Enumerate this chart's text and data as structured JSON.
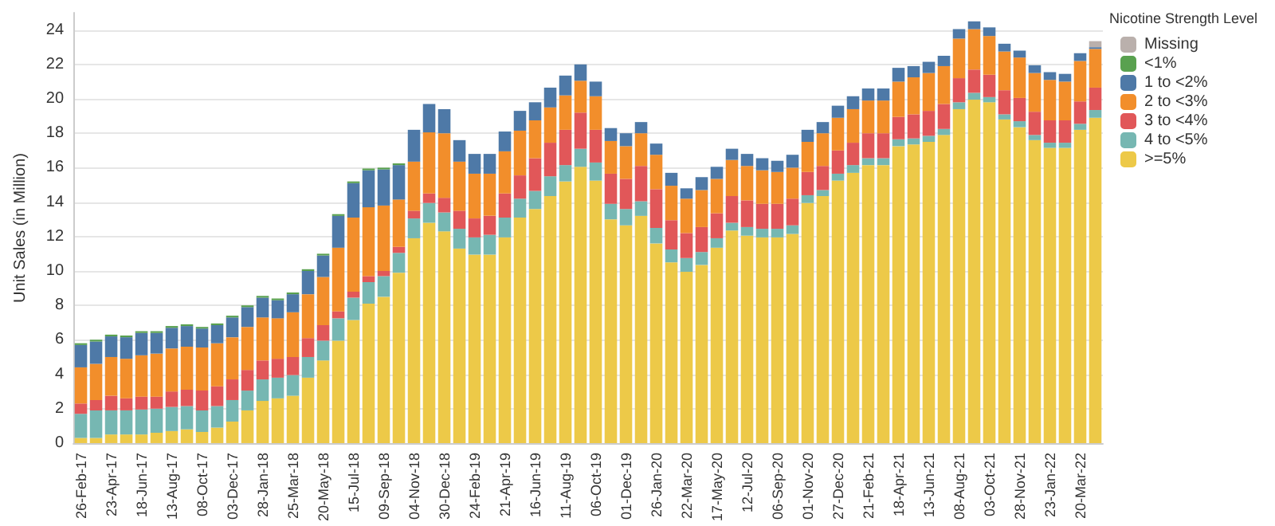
{
  "chart_data": {
    "type": "bar",
    "stacked": true,
    "ylabel": "Unit Sales (in Million)",
    "legend_title": "Nicotine Strength Level",
    "legend": "top right",
    "grid": "y",
    "categories": [
      "26-Feb-17",
      null,
      "23-Apr-17",
      null,
      "18-Jun-17",
      null,
      "13-Aug-17",
      null,
      "08-Oct-17",
      null,
      "03-Dec-17",
      null,
      "28-Jan-18",
      null,
      "25-Mar-18",
      null,
      "20-May-18",
      null,
      "15-Jul-18",
      null,
      "09-Sep-18",
      null,
      "04-Nov-18",
      null,
      "30-Dec-18",
      null,
      "24-Feb-19",
      null,
      "21-Apr-19",
      null,
      "16-Jun-19",
      null,
      "11-Aug-19",
      null,
      "06-Oct-19",
      null,
      "01-Dec-19",
      null,
      "26-Jan-20",
      null,
      "22-Mar-20",
      null,
      "17-May-20",
      null,
      "12-Jul-20",
      null,
      "06-Sep-20",
      null,
      "01-Nov-20",
      null,
      "27-Dec-20",
      null,
      "21-Feb-21",
      null,
      "18-Apr-21",
      null,
      "13-Jun-21",
      null,
      "08-Aug-21",
      null,
      "03-Oct-21",
      null,
      "28-Nov-21",
      null,
      "23-Jan-22",
      null,
      "20-Mar-22",
      null
    ],
    "ylim": [
      0,
      25
    ],
    "yticks": [
      0,
      2,
      4,
      6,
      8,
      10,
      12,
      14,
      16,
      18,
      20,
      22,
      24
    ],
    "series": [
      {
        "name": ">=5%",
        "color": "#edc948",
        "values": [
          0.3,
          0.3,
          0.5,
          0.5,
          0.5,
          0.6,
          0.7,
          0.8,
          0.65,
          0.9,
          1.25,
          1.9,
          2.45,
          2.6,
          2.75,
          3.8,
          4.8,
          5.95,
          7.15,
          8.1,
          8.5,
          9.9,
          11.9,
          12.8,
          12.3,
          11.3,
          10.95,
          10.95,
          11.95,
          13.1,
          13.6,
          14.35,
          15.2,
          16.05,
          15.25,
          13.0,
          12.65,
          13.2,
          11.6,
          10.5,
          9.95,
          10.35,
          11.35,
          12.35,
          12.05,
          11.95,
          11.95,
          12.15,
          13.95,
          14.35,
          15.25,
          15.7,
          16.15,
          16.15,
          17.25,
          17.35,
          17.5,
          17.9,
          19.4,
          19.95,
          19.8,
          18.8,
          18.35,
          17.6,
          17.15,
          17.15,
          18.2,
          18.9
        ]
      },
      {
        "name": "4 to <5%",
        "color": "#76b7b2",
        "values": [
          1.4,
          1.6,
          1.4,
          1.4,
          1.45,
          1.4,
          1.4,
          1.35,
          1.25,
          1.25,
          1.25,
          1.15,
          1.25,
          1.2,
          1.2,
          1.2,
          1.15,
          1.3,
          1.3,
          1.25,
          1.2,
          1.15,
          1.15,
          1.15,
          1.1,
          1.15,
          1.0,
          1.15,
          1.15,
          1.1,
          1.05,
          1.15,
          0.95,
          1.05,
          1.05,
          0.9,
          0.95,
          0.85,
          0.9,
          0.75,
          0.8,
          0.75,
          0.55,
          0.45,
          0.5,
          0.5,
          0.5,
          0.5,
          0.45,
          0.35,
          0.4,
          0.45,
          0.4,
          0.4,
          0.4,
          0.35,
          0.35,
          0.35,
          0.4,
          0.4,
          0.3,
          0.3,
          0.35,
          0.3,
          0.3,
          0.3,
          0.35,
          0.45
        ]
      },
      {
        "name": "3 to <4%",
        "color": "#e15759",
        "values": [
          0.6,
          0.6,
          0.85,
          0.7,
          0.75,
          0.7,
          0.9,
          0.95,
          1.15,
          1.15,
          1.2,
          1.2,
          1.1,
          1.1,
          1.05,
          1.1,
          0.9,
          0.4,
          0.35,
          0.35,
          0.3,
          0.35,
          0.45,
          0.55,
          0.85,
          1.05,
          1.1,
          1.1,
          1.4,
          1.35,
          1.9,
          1.95,
          2.05,
          2.1,
          1.9,
          1.75,
          1.75,
          2.05,
          2.25,
          1.7,
          1.45,
          1.45,
          1.45,
          1.55,
          1.55,
          1.45,
          1.45,
          1.55,
          1.35,
          1.4,
          1.35,
          1.3,
          1.45,
          1.45,
          1.3,
          1.4,
          1.45,
          1.45,
          1.4,
          1.35,
          1.3,
          1.4,
          1.35,
          1.35,
          1.3,
          1.3,
          1.3,
          1.3
        ]
      },
      {
        "name": "2 to <3%",
        "color": "#f28e2b",
        "values": [
          2.1,
          2.1,
          2.25,
          2.3,
          2.4,
          2.5,
          2.5,
          2.5,
          2.5,
          2.5,
          2.45,
          2.5,
          2.5,
          2.35,
          2.6,
          2.55,
          2.8,
          3.7,
          4.3,
          4.0,
          3.8,
          2.75,
          2.85,
          3.55,
          3.75,
          2.85,
          2.6,
          2.45,
          2.45,
          2.6,
          2.2,
          2.05,
          2.0,
          1.85,
          1.95,
          1.9,
          1.9,
          1.9,
          2.0,
          2.0,
          2.0,
          2.15,
          2.0,
          2.1,
          2.0,
          1.95,
          1.85,
          1.8,
          1.75,
          1.9,
          1.9,
          1.95,
          1.9,
          1.9,
          2.05,
          2.15,
          2.2,
          2.2,
          2.3,
          2.35,
          2.25,
          2.25,
          2.35,
          2.25,
          2.35,
          2.25,
          2.35,
          2.25
        ]
      },
      {
        "name": "1 to <2%",
        "color": "#4e79a7",
        "values": [
          1.3,
          1.3,
          1.2,
          1.25,
          1.3,
          1.2,
          1.2,
          1.2,
          1.1,
          1.05,
          1.15,
          1.15,
          1.15,
          1.05,
          1.05,
          1.35,
          1.25,
          1.85,
          2.0,
          2.15,
          2.1,
          2.0,
          1.85,
          1.65,
          1.4,
          1.25,
          1.15,
          1.15,
          1.15,
          1.15,
          1.05,
          1.15,
          1.15,
          0.95,
          0.85,
          0.75,
          0.75,
          0.65,
          0.65,
          0.75,
          0.6,
          0.75,
          0.7,
          0.65,
          0.7,
          0.7,
          0.65,
          0.75,
          0.7,
          0.65,
          0.7,
          0.75,
          0.7,
          0.7,
          0.8,
          0.65,
          0.65,
          0.6,
          0.55,
          0.45,
          0.5,
          0.45,
          0.4,
          0.45,
          0.45,
          0.45,
          0.45,
          0.1
        ]
      },
      {
        "name": "<1%",
        "color": "#59a14f",
        "values": [
          0.1,
          0.1,
          0.1,
          0.1,
          0.1,
          0.1,
          0.1,
          0.1,
          0.1,
          0.1,
          0.1,
          0.1,
          0.1,
          0.1,
          0.1,
          0.1,
          0.1,
          0.1,
          0.1,
          0.1,
          0.1,
          0.1,
          0,
          0,
          0,
          0,
          0,
          0,
          0,
          0,
          0,
          0,
          0,
          0,
          0,
          0,
          0,
          0,
          0,
          0,
          0,
          0,
          0,
          0,
          0,
          0,
          0,
          0,
          0,
          0,
          0,
          0,
          0,
          0,
          0,
          0,
          0,
          0,
          0,
          0,
          0,
          0,
          0,
          0,
          0,
          0,
          0,
          0
        ]
      },
      {
        "name": "Missing",
        "color": "#bab0ac",
        "values": [
          0,
          0,
          0,
          0,
          0,
          0,
          0,
          0,
          0,
          0,
          0,
          0,
          0,
          0,
          0,
          0,
          0,
          0,
          0,
          0,
          0,
          0,
          0,
          0,
          0,
          0,
          0,
          0,
          0,
          0,
          0,
          0,
          0,
          0,
          0,
          0,
          0,
          0,
          0,
          0,
          0,
          0,
          0,
          0,
          0,
          0,
          0,
          0,
          0,
          0,
          0,
          0,
          0,
          0,
          0,
          0,
          0,
          0,
          0,
          0,
          0,
          0,
          0,
          0,
          0,
          0,
          0,
          0.35
        ]
      }
    ]
  }
}
